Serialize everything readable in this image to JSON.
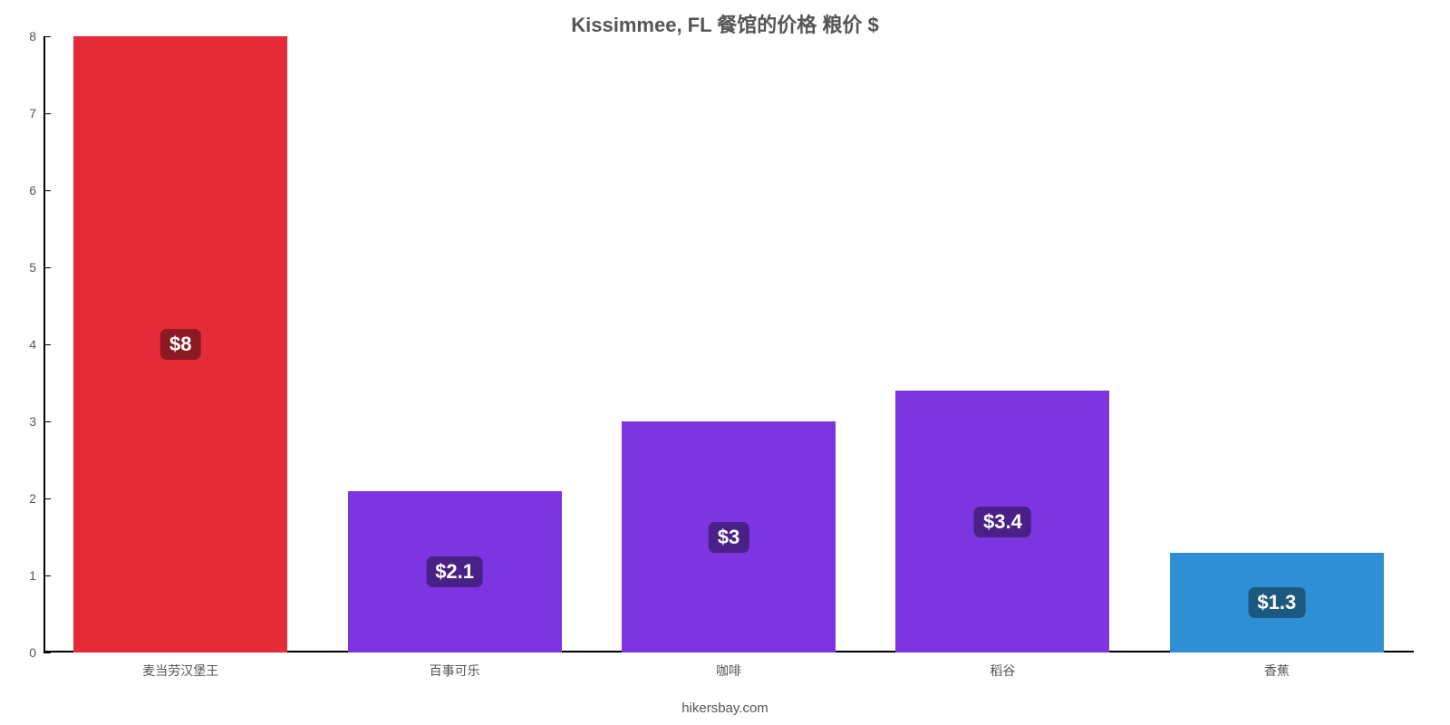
{
  "chart": {
    "type": "bar",
    "title": "Kissimmee, FL 餐馆的价格 粮价 $",
    "title_fontsize": 22,
    "title_color": "#555555",
    "footer": "hikersbay.com",
    "footer_fontsize": 15,
    "footer_color": "#555555",
    "background_color": "#ffffff",
    "axis_color": "#000000",
    "ylim": [
      0,
      8
    ],
    "yticks": [
      0,
      1,
      2,
      3,
      4,
      5,
      6,
      7,
      8
    ],
    "ytick_fontsize": 14,
    "ytick_color": "#555555",
    "bar_width": 0.78,
    "category_label_fontsize": 14,
    "category_label_color": "#555555",
    "value_label_fontsize": 22,
    "value_label_text_color": "#ffffff",
    "categories": [
      "麦当劳汉堡王",
      "百事可乐",
      "咖啡",
      "稻谷",
      "香蕉"
    ],
    "values": [
      8,
      2.1,
      3,
      3.4,
      1.3
    ],
    "value_labels": [
      "$8",
      "$2.1",
      "$3",
      "$3.4",
      "$1.3"
    ],
    "bar_colors": [
      "#e52b38",
      "#7c35e0",
      "#7c35e0",
      "#7c35e0",
      "#2f8fd4"
    ],
    "value_label_bg_colors": [
      "#8c1a22",
      "#492085",
      "#492085",
      "#492085",
      "#1d587f"
    ]
  }
}
